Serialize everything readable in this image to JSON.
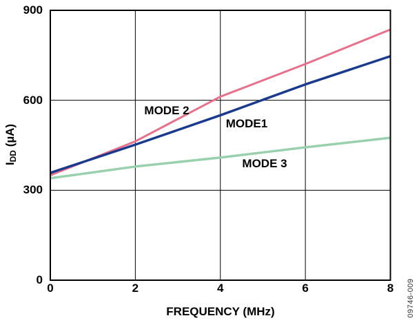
{
  "chart_data": {
    "type": "line",
    "title": "",
    "xlabel": "FREQUENCY (MHz)",
    "ylabel": "IDD (µA)",
    "ylabel_parts": {
      "prefix": "I",
      "subscript": "DD",
      "suffix": " (µA)"
    },
    "xlim": [
      0,
      8
    ],
    "ylim": [
      0,
      900
    ],
    "x_ticks": [
      "0",
      "2",
      "4",
      "6",
      "8"
    ],
    "y_ticks": [
      "900",
      "600",
      "300",
      "0"
    ],
    "grid": true,
    "legend_position": "inline-labels",
    "x": [
      0,
      2,
      4,
      6,
      8
    ],
    "series": [
      {
        "name": "MODE 2",
        "color": "#E8708A",
        "values": [
          350,
          463,
          612,
          721,
          836
        ]
      },
      {
        "name": "MODE 3",
        "color": "#99D0AE",
        "values": [
          340,
          379,
          409,
          443,
          475
        ]
      },
      {
        "name": "MODE1",
        "color": "#1A3A8F",
        "values": [
          358,
          452,
          550,
          653,
          747
        ]
      }
    ],
    "watermark": "09746-009",
    "colors": {
      "axis": "#000000",
      "grid": "#000000",
      "text": "#000000",
      "background": "#FFFFFF"
    }
  }
}
